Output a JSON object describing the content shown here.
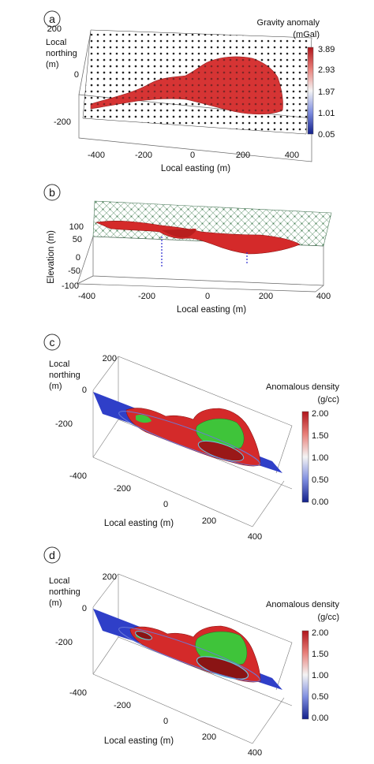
{
  "panels": [
    {
      "letter": "a",
      "xlabel": "Local easting (m)",
      "ylabel": [
        "Local",
        "northing",
        "(m)"
      ],
      "colorbar_title": [
        "Gravity anomaly",
        "(mGal)"
      ],
      "colorbar_ticks": [
        "3.89",
        "2.93",
        "1.97",
        "1.01",
        "0.05"
      ],
      "x_ticks": [
        "-400",
        "-200",
        "0",
        "200",
        "400"
      ],
      "y_ticks": [
        "200",
        "0",
        "-200"
      ]
    },
    {
      "letter": "b",
      "xlabel": "Local easting (m)",
      "ylabel": "Elevation (m)",
      "x_ticks": [
        "-400",
        "-200",
        "0",
        "200",
        "400"
      ],
      "y_ticks": [
        "100",
        "50",
        "0",
        "-50",
        "-100"
      ]
    },
    {
      "letter": "c",
      "xlabel": "Local easting (m)",
      "ylabel": [
        "Local",
        "northing",
        "(m)"
      ],
      "colorbar_title": [
        "Anomalous density",
        "(g/cc)"
      ],
      "colorbar_ticks": [
        "2.00",
        "1.50",
        "1.00",
        "0.50",
        "0.00"
      ],
      "x_ticks": [
        "-200",
        "0",
        "200",
        "400"
      ],
      "y_ticks": [
        "200",
        "0",
        "-200",
        "-400"
      ]
    },
    {
      "letter": "d",
      "xlabel": "Local easting (m)",
      "ylabel": [
        "Local",
        "northing",
        "(m)"
      ],
      "colorbar_title": [
        "Anomalous density",
        "(g/cc)"
      ],
      "colorbar_ticks": [
        "2.00",
        "1.50",
        "1.00",
        "0.50",
        "0.00"
      ],
      "x_ticks": [
        "-200",
        "0",
        "200",
        "400"
      ],
      "y_ticks": [
        "200",
        "0",
        "-200",
        "-400"
      ]
    }
  ],
  "colors": {
    "anomaly_red": "#d42a2a",
    "anomaly_green": "#3fc43a",
    "background_blue": "#2f3fc8",
    "colorbar_top": "#b0151b",
    "colorbar_mid": "#f4f4f4",
    "colorbar_bottom": "#12208a"
  },
  "chart_data": [
    {
      "type": "3d-surface",
      "title": "",
      "xlabel": "Local easting (m)",
      "ylabel": "Local northing (m)",
      "xlim": [
        -400,
        400
      ],
      "ylim": [
        -200,
        200
      ],
      "colorbar_range": [
        0.05,
        3.89
      ],
      "colorbar_unit": "mGal"
    },
    {
      "type": "3d-surface",
      "title": "",
      "xlabel": "Local easting (m)",
      "ylabel": "Elevation (m)",
      "xlim": [
        -400,
        400
      ],
      "ylim": [
        -100,
        100
      ]
    },
    {
      "type": "3d-volume",
      "title": "",
      "xlabel": "Local easting (m)",
      "ylabel": "Local northing (m)",
      "xlim": [
        -200,
        400
      ],
      "ylim": [
        -400,
        200
      ],
      "colorbar_range": [
        0.0,
        2.0
      ],
      "colorbar_unit": "g/cc"
    },
    {
      "type": "3d-volume",
      "title": "",
      "xlabel": "Local easting (m)",
      "ylabel": "Local northing (m)",
      "xlim": [
        -200,
        400
      ],
      "ylim": [
        -400,
        200
      ],
      "colorbar_range": [
        0.0,
        2.0
      ],
      "colorbar_unit": "g/cc"
    }
  ]
}
